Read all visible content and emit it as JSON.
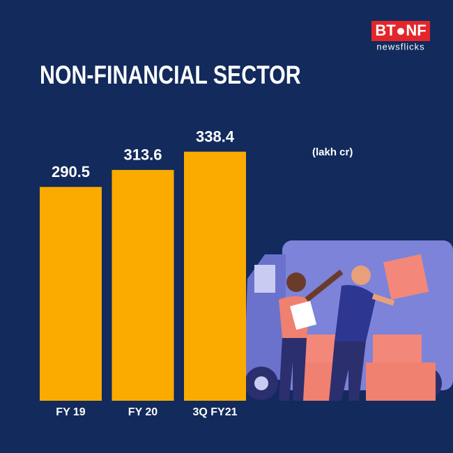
{
  "chart_data": {
    "type": "bar",
    "title": "NON-FINANCIAL SECTOR",
    "unit_label": "(lakh cr)",
    "categories": [
      "FY 19",
      "FY 20",
      "3Q FY21"
    ],
    "values": [
      290.5,
      313.6,
      338.4
    ],
    "color": "#fbab00"
  },
  "logo": {
    "left": "BT",
    "right": "NF",
    "tagline": "newsflicks"
  }
}
